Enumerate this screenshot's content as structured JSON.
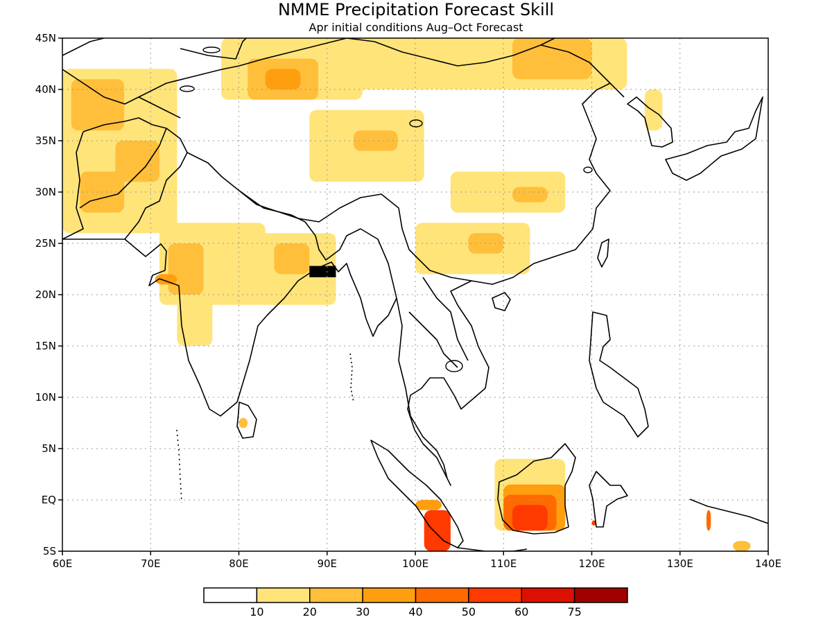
{
  "title": "NMME Precipitation Forecast Skill",
  "subtitle": "Apr initial conditions  Aug–Oct Forecast",
  "map": {
    "lon_range": [
      60,
      140
    ],
    "lat_range": [
      -5,
      45
    ],
    "grid": true,
    "x_ticks": [
      {
        "value": 60,
        "label": "60E"
      },
      {
        "value": 70,
        "label": "70E"
      },
      {
        "value": 80,
        "label": "80E"
      },
      {
        "value": 90,
        "label": "90E"
      },
      {
        "value": 100,
        "label": "100E"
      },
      {
        "value": 110,
        "label": "110E"
      },
      {
        "value": 120,
        "label": "120E"
      },
      {
        "value": 130,
        "label": "130E"
      },
      {
        "value": 140,
        "label": "140E"
      }
    ],
    "y_ticks": [
      {
        "value": 45,
        "label": "45N"
      },
      {
        "value": 40,
        "label": "40N"
      },
      {
        "value": 35,
        "label": "35N"
      },
      {
        "value": 30,
        "label": "30N"
      },
      {
        "value": 25,
        "label": "25N"
      },
      {
        "value": 20,
        "label": "20N"
      },
      {
        "value": 15,
        "label": "15N"
      },
      {
        "value": 10,
        "label": "10N"
      },
      {
        "value": 5,
        "label": "5N"
      },
      {
        "value": 0,
        "label": "EQ"
      },
      {
        "value": -5,
        "label": "5S"
      }
    ]
  },
  "colorbar": {
    "colors": [
      "#ffffff",
      "#ffe47a",
      "#ffbf3a",
      "#ff9f10",
      "#ff6a00",
      "#ff3a00",
      "#dc1000",
      "#a00000"
    ],
    "labels": [
      "10",
      "20",
      "30",
      "40",
      "50",
      "60",
      "75"
    ]
  },
  "skill_regions": [
    {
      "name": "central-asia-west",
      "level": 1,
      "lon": [
        60,
        73
      ],
      "lat": [
        26,
        42
      ]
    },
    {
      "name": "kazakh-core",
      "level": 2,
      "lon": [
        61,
        67
      ],
      "lat": [
        36,
        41
      ]
    },
    {
      "name": "afghan-band",
      "level": 2,
      "lon": [
        66,
        71
      ],
      "lat": [
        31,
        35
      ]
    },
    {
      "name": "pakistan-west",
      "level": 2,
      "lon": [
        62,
        67
      ],
      "lat": [
        28,
        32
      ]
    },
    {
      "name": "xinjiang-north",
      "level": 1,
      "lon": [
        78,
        94
      ],
      "lat": [
        39,
        45
      ]
    },
    {
      "name": "xinjiang-core",
      "level": 2,
      "lon": [
        81,
        89
      ],
      "lat": [
        39,
        43
      ]
    },
    {
      "name": "xinjiang-peak",
      "level": 3,
      "lon": [
        83,
        87
      ],
      "lat": [
        40,
        42
      ]
    },
    {
      "name": "mongolia-band",
      "level": 1,
      "lon": [
        92,
        124
      ],
      "lat": [
        40,
        45
      ]
    },
    {
      "name": "mongolia-core",
      "level": 2,
      "lon": [
        111,
        120
      ],
      "lat": [
        41,
        45
      ]
    },
    {
      "name": "tibet-patch",
      "level": 1,
      "lon": [
        88,
        101
      ],
      "lat": [
        31,
        38
      ]
    },
    {
      "name": "tibet-core",
      "level": 2,
      "lon": [
        93,
        98
      ],
      "lat": [
        34,
        36
      ]
    },
    {
      "name": "central-china",
      "level": 1,
      "lon": [
        104,
        117
      ],
      "lat": [
        28,
        32
      ]
    },
    {
      "name": "central-china-core",
      "level": 2,
      "lon": [
        111,
        115
      ],
      "lat": [
        29,
        30.5
      ]
    },
    {
      "name": "south-china",
      "level": 1,
      "lon": [
        100,
        113
      ],
      "lat": [
        22,
        27
      ]
    },
    {
      "name": "south-china-core",
      "level": 2,
      "lon": [
        106,
        110
      ],
      "lat": [
        24,
        26
      ]
    },
    {
      "name": "korea",
      "level": 1,
      "lon": [
        126,
        128
      ],
      "lat": [
        36,
        40
      ]
    },
    {
      "name": "india-west",
      "level": 1,
      "lon": [
        71,
        83
      ],
      "lat": [
        19,
        27
      ]
    },
    {
      "name": "india-west-core",
      "level": 2,
      "lon": [
        72,
        76
      ],
      "lat": [
        20,
        25
      ]
    },
    {
      "name": "gujarat-peak",
      "level": 3,
      "lon": [
        70.5,
        73
      ],
      "lat": [
        21,
        22
      ]
    },
    {
      "name": "india-south",
      "level": 1,
      "lon": [
        73,
        77
      ],
      "lat": [
        15,
        20
      ]
    },
    {
      "name": "india-north",
      "level": 1,
      "lon": [
        82,
        91
      ],
      "lat": [
        19,
        26
      ]
    },
    {
      "name": "india-north-core",
      "level": 2,
      "lon": [
        84,
        88
      ],
      "lat": [
        22,
        25
      ]
    },
    {
      "name": "sri-lanka",
      "level": 2,
      "lon": [
        80,
        81
      ],
      "lat": [
        7,
        8
      ]
    },
    {
      "name": "borneo",
      "level": 1,
      "lon": [
        109,
        117
      ],
      "lat": [
        -3,
        4
      ]
    },
    {
      "name": "borneo-l2",
      "level": 3,
      "lon": [
        110,
        117
      ],
      "lat": [
        -3,
        1.5
      ]
    },
    {
      "name": "borneo-l3",
      "level": 4,
      "lon": [
        110,
        116
      ],
      "lat": [
        -3,
        0.5
      ]
    },
    {
      "name": "borneo-l4",
      "level": 5,
      "lon": [
        111,
        115
      ],
      "lat": [
        -3,
        -0.5
      ]
    },
    {
      "name": "sumatra-south",
      "level": 3,
      "lon": [
        100,
        103
      ],
      "lat": [
        -1,
        0
      ]
    },
    {
      "name": "sumatra-tip",
      "level": 5,
      "lon": [
        101,
        104
      ],
      "lat": [
        -5,
        -1
      ]
    },
    {
      "name": "sulawesi",
      "level": 5,
      "lon": [
        120,
        120.5
      ],
      "lat": [
        -2.5,
        -2
      ]
    },
    {
      "name": "new-guinea-west",
      "level": 4,
      "lon": [
        133,
        133.5
      ],
      "lat": [
        -3,
        -1
      ]
    },
    {
      "name": "new-guinea-south",
      "level": 2,
      "lon": [
        136,
        138
      ],
      "lat": [
        -5,
        -4
      ]
    }
  ],
  "boundary_fill": [
    {
      "name": "bangladesh-coast",
      "lon": [
        88,
        91
      ],
      "lat": [
        21.7,
        22.8
      ]
    }
  ]
}
